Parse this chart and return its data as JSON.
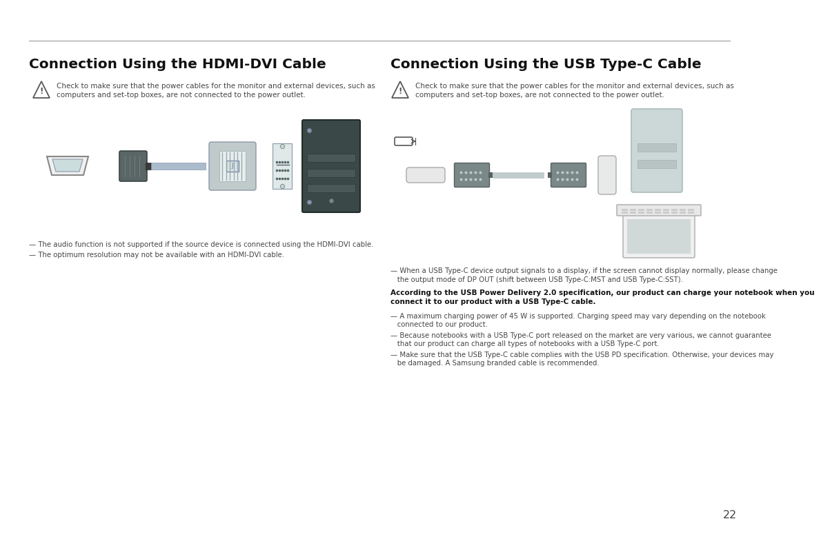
{
  "bg_color": "#ffffff",
  "text_color": "#444444",
  "title_color": "#111111",
  "divider_color": "#999999",
  "left_title": "Connection Using the HDMI-DVI Cable",
  "right_title": "Connection Using the USB Type-C Cable",
  "warn_line1": "Check to make sure that the power cables for the monitor and external devices, such as",
  "warn_line2": "computers and set-top boxes, are not connected to the power outlet.",
  "hdmi_note1": "— The audio function is not supported if the source device is connected using the HDMI-DVI cable.",
  "hdmi_note2": "— The optimum resolution may not be available with an HDMI-DVI cable.",
  "usbc_note0a": "— When a USB Type-C device output signals to a display, if the screen cannot display normally, please change",
  "usbc_note0b": "   the output mode of DP OUT (shift between USB Type-C:MST and USB Type-C:SST).",
  "usbc_bold1": "According to the USB Power Delivery 2.0 specification, our product can charge your notebook when you",
  "usbc_bold2": "connect it to our product with a USB Type-C cable.",
  "usbc_n1a": "— A maximum charging power of 45 W is supported. Charging speed may vary depending on the notebook",
  "usbc_n1b": "   connected to our product.",
  "usbc_n2a": "— Because notebooks with a USB Type-C port released on the market are very various, we cannot guarantee",
  "usbc_n2b": "   that our product can charge all types of notebooks with a USB Type-C port.",
  "usbc_n3a": "— Make sure that the USB Type-C cable complies with the USB PD specification. Otherwise, your devices may",
  "usbc_n3b": "   be damaged. A Samsung branded cable is recommended.",
  "page_number": "22",
  "hdmi_color": "#3d4a4a",
  "connector_gray": "#888899",
  "light_gray": "#cccccc",
  "cable_color": "#aabbbb",
  "dvi_hood_color": "#b8c4c4",
  "tower_color": "#3a4848",
  "tower2_color": "#c8d4d4",
  "laptop_color": "#e0e0e0"
}
